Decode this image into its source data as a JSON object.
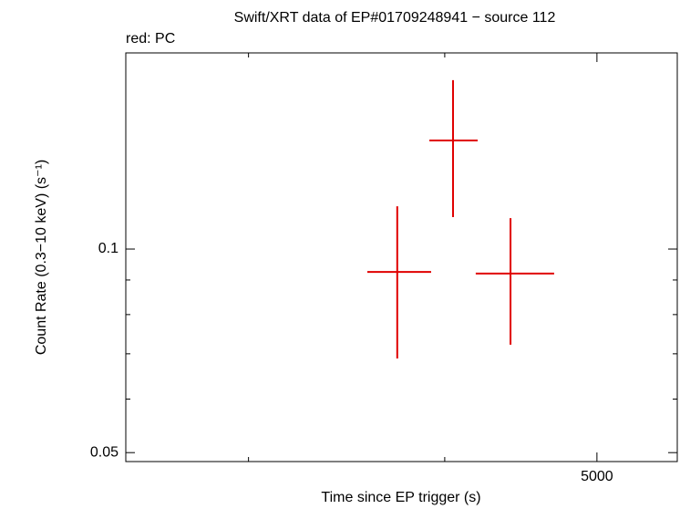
{
  "chart_data": {
    "type": "errorbar",
    "title": "Swift/XRT data of EP#01709248941 − source 112",
    "subtitle": "red: PC",
    "x_label": "Time since EP trigger (s)",
    "y_label": "Count Rate (0.3−10 keV) (s⁻¹)",
    "x_log": true,
    "y_log": true,
    "xlim": [
      2506,
      5625
    ],
    "ylim": [
      0.0485,
      0.195
    ],
    "xticks": [
      5000
    ],
    "xminor": [
      3000,
      4000
    ],
    "yticks": [
      0.05,
      0.1
    ],
    "yminor": [
      0.06,
      0.07,
      0.08,
      0.09
    ],
    "series": [
      {
        "name": "PC",
        "color": "#e00000",
        "x": [
          3731,
          4049,
          4405
        ],
        "x_low": [
          3571,
          3911,
          4186
        ],
        "x_high": [
          3921,
          4198,
          4696
        ],
        "values": [
          0.0925,
          0.1447,
          0.092
        ],
        "y_low": [
          0.0689,
          0.1115,
          0.0722
        ],
        "y_high": [
          0.1157,
          0.1777,
          0.1111
        ]
      }
    ]
  }
}
